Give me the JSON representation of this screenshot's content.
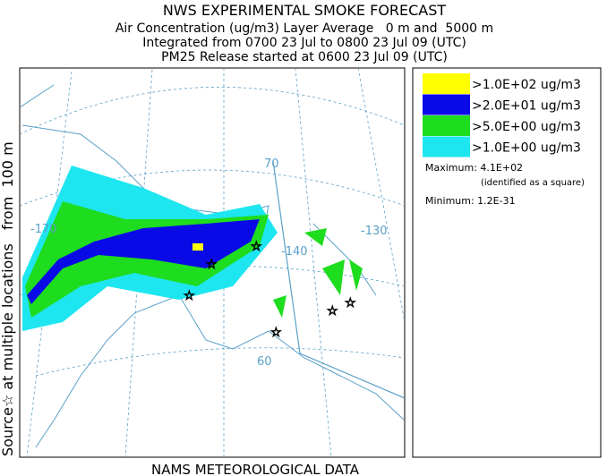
{
  "header": {
    "title": "NWS EXPERIMENTAL SMOKE FORECAST",
    "lines": [
      "Air Concentration (ug/m3) Layer Average   0 m and  5000 m",
      "Integrated from 0700 23 Jul to 0800 23 Jul 09 (UTC)",
      "PM25 Release started at 0600 23 Jul 09 (UTC)"
    ]
  },
  "side_label": "Source☆ at multiple locations   from  100 m",
  "map": {
    "graticule_labels": [
      "-170",
      "70",
      "-140",
      "-130",
      "60"
    ]
  },
  "legend": {
    "entries": [
      {
        "label": ">1.0E+02 ug/m3",
        "color": "#ffff00"
      },
      {
        "label": ">2.0E+01 ug/m3",
        "color": "#0a0ae6"
      },
      {
        "label": ">5.0E+00 ug/m3",
        "color": "#1edc1e"
      },
      {
        "label": ">1.0E+00 ug/m3",
        "color": "#1ee6f0"
      }
    ],
    "maximum": "Maximum: 4.1E+02",
    "maximum_note": "(identified as a square)",
    "minimum": "Minimum: 1.2E-31"
  },
  "footer": "NAMS METEOROLOGICAL DATA"
}
